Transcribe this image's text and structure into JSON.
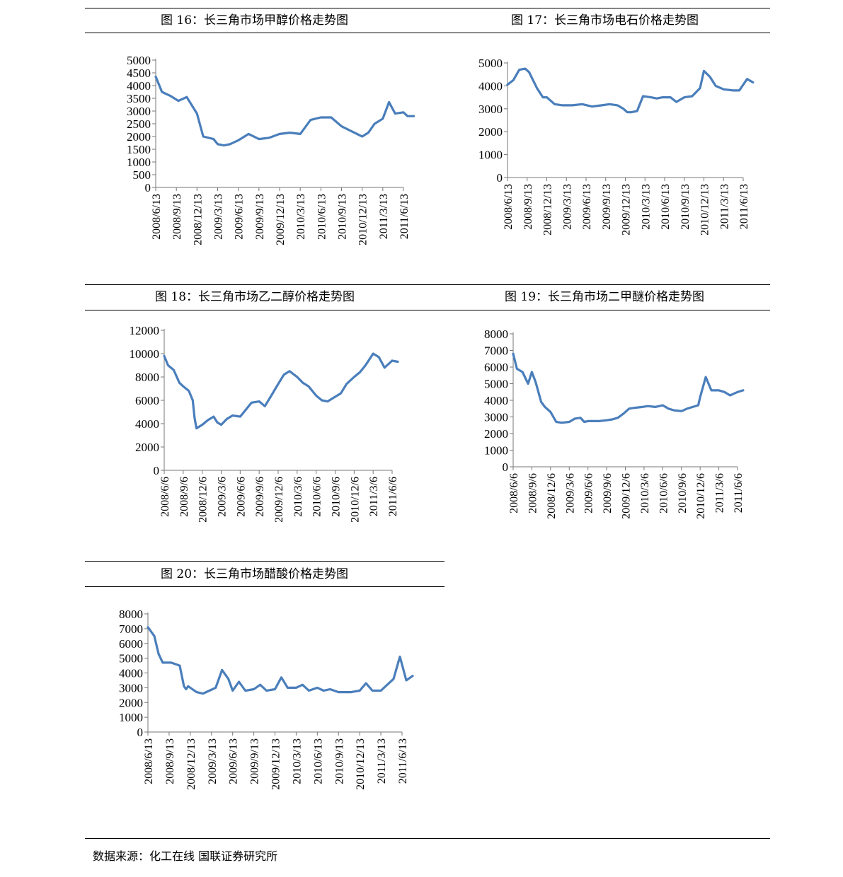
{
  "footer": {
    "source": "数据来源：化工在线 国联证券研究所"
  },
  "series_color": "#4a7ebb",
  "charts": [
    {
      "title": "图 16：长三角市场甲醇价格走势图",
      "chart_data": {
        "type": "line",
        "title": "图 16：长三角市场甲醇价格走势图",
        "xlabel": "",
        "ylabel": "",
        "ylim": [
          0,
          5000
        ],
        "y_ticks": [
          "0",
          "500",
          "1000",
          "1500",
          "2000",
          "2500",
          "3000",
          "3500",
          "4000",
          "4500",
          "5000"
        ],
        "x_ticks": [
          "2008/6/13",
          "2008/9/13",
          "2008/12/13",
          "2009/3/13",
          "2009/6/13",
          "2009/9/13",
          "2009/12/13",
          "2010/3/13",
          "2010/6/13",
          "2010/9/13",
          "2010/12/13",
          "2011/3/13",
          "2011/6/13"
        ],
        "x": [
          0,
          0.3,
          0.7,
          1.1,
          1.5,
          2,
          2.3,
          2.8,
          3,
          3.3,
          3.6,
          4,
          4.5,
          5,
          5.5,
          6,
          6.5,
          7,
          7.5,
          8,
          8.5,
          9,
          9.5,
          10,
          10.3,
          10.6,
          11,
          11.3,
          11.6,
          12,
          12.2,
          12.5
        ],
        "values": [
          4350,
          3750,
          3600,
          3400,
          3550,
          2900,
          2000,
          1900,
          1700,
          1650,
          1700,
          1850,
          2100,
          1900,
          1950,
          2100,
          2150,
          2100,
          2650,
          2750,
          2750,
          2400,
          2200,
          2000,
          2150,
          2500,
          2700,
          3350,
          2900,
          2950,
          2800,
          2800
        ]
      }
    },
    {
      "title": "图 17：长三角市场电石价格走势图",
      "chart_data": {
        "type": "line",
        "title": "图 17：长三角市场电石价格走势图",
        "xlabel": "",
        "ylabel": "",
        "ylim": [
          0,
          5000
        ],
        "y_ticks": [
          "0",
          "1000",
          "2000",
          "3000",
          "4000",
          "5000"
        ],
        "x_ticks": [
          "2008/6/13",
          "2008/9/13",
          "2008/12/13",
          "2009/3/13",
          "2009/6/13",
          "2009/9/13",
          "2009/12/13",
          "2010/3/13",
          "2010/6/13",
          "2010/9/13",
          "2010/12/13",
          "2011/3/13",
          "2011/6/13"
        ],
        "x": [
          0,
          0.3,
          0.6,
          0.9,
          1.1,
          1.5,
          1.8,
          2,
          2.4,
          2.8,
          3.3,
          3.8,
          4.3,
          4.8,
          5.2,
          5.6,
          5.9,
          6.1,
          6.3,
          6.6,
          6.9,
          7.3,
          7.6,
          7.9,
          8.3,
          8.6,
          9,
          9.4,
          9.8,
          10,
          10.3,
          10.6,
          11,
          11.5,
          11.8,
          12.2,
          12.5
        ],
        "values": [
          4050,
          4250,
          4700,
          4750,
          4600,
          3900,
          3500,
          3500,
          3200,
          3150,
          3150,
          3200,
          3100,
          3150,
          3200,
          3150,
          3000,
          2850,
          2850,
          2900,
          3550,
          3500,
          3450,
          3500,
          3500,
          3300,
          3500,
          3550,
          3900,
          4650,
          4400,
          4000,
          3850,
          3800,
          3800,
          4300,
          4150
        ]
      }
    },
    {
      "title": "图 18：长三角市场乙二醇价格走势图",
      "chart_data": {
        "type": "line",
        "title": "图 18：长三角市场乙二醇价格走势图",
        "xlabel": "",
        "ylabel": "",
        "ylim": [
          0,
          12000
        ],
        "y_ticks": [
          "0",
          "2000",
          "4000",
          "6000",
          "8000",
          "10000",
          "12000"
        ],
        "x_ticks": [
          "2008/6/6",
          "2008/9/6",
          "2008/12/6",
          "2009/3/6",
          "2009/6/6",
          "2009/9/6",
          "2009/12/6",
          "2010/3/6",
          "2010/6/6",
          "2010/9/6",
          "2010/12/6",
          "2011/3/6",
          "2011/6/6"
        ],
        "x": [
          0,
          0.2,
          0.5,
          0.8,
          1,
          1.3,
          1.5,
          1.6,
          1.7,
          2,
          2.3,
          2.6,
          2.8,
          3,
          3.3,
          3.6,
          4,
          4.3,
          4.6,
          5,
          5.3,
          5.6,
          6,
          6.3,
          6.6,
          7,
          7.3,
          7.6,
          8,
          8.3,
          8.6,
          9,
          9.3,
          9.6,
          10,
          10.3,
          10.6,
          11,
          11.3,
          11.6,
          12,
          12.3
        ],
        "values": [
          9800,
          9000,
          8600,
          7500,
          7200,
          6800,
          6000,
          4500,
          3600,
          3900,
          4300,
          4600,
          4100,
          3900,
          4400,
          4700,
          4600,
          5200,
          5800,
          5900,
          5500,
          6300,
          7400,
          8200,
          8500,
          8000,
          7500,
          7200,
          6400,
          6000,
          5900,
          6300,
          6600,
          7400,
          8000,
          8400,
          9000,
          10000,
          9700,
          8800,
          9400,
          9300
        ]
      }
    },
    {
      "title": "图 19：长三角市场二甲醚价格走势图",
      "chart_data": {
        "type": "line",
        "title": "图 19：长三角市场二甲醚价格走势图",
        "xlabel": "",
        "ylabel": "",
        "ylim": [
          0,
          8000
        ],
        "y_ticks": [
          "0",
          "1000",
          "2000",
          "3000",
          "4000",
          "5000",
          "6000",
          "7000",
          "8000"
        ],
        "x_ticks": [
          "2008/6/6",
          "2008/9/6",
          "2008/12/6",
          "2009/3/6",
          "2009/6/6",
          "2009/9/6",
          "2009/12/6",
          "2010/3/6",
          "2010/6/6",
          "2010/9/6",
          "2010/12/6",
          "2011/3/6",
          "2011/6/6"
        ],
        "x": [
          0,
          0.2,
          0.5,
          0.8,
          1,
          1.2,
          1.5,
          1.7,
          2,
          2.3,
          2.6,
          3,
          3.3,
          3.6,
          3.8,
          4,
          4.3,
          4.6,
          5,
          5.3,
          5.6,
          5.9,
          6.2,
          6.5,
          6.9,
          7.2,
          7.6,
          8,
          8.3,
          8.6,
          9,
          9.3,
          9.6,
          9.9,
          10,
          10.3,
          10.6,
          11,
          11.3,
          11.6,
          12,
          12.3
        ],
        "values": [
          6800,
          5900,
          5700,
          5000,
          5700,
          5100,
          3900,
          3600,
          3300,
          2700,
          2650,
          2700,
          2900,
          2950,
          2700,
          2750,
          2750,
          2750,
          2800,
          2850,
          2950,
          3200,
          3500,
          3550,
          3600,
          3650,
          3600,
          3700,
          3500,
          3400,
          3350,
          3500,
          3600,
          3700,
          4200,
          5400,
          4600,
          4600,
          4500,
          4300,
          4500,
          4600
        ]
      }
    },
    {
      "title": "图 20：长三角市场醋酸价格走势图",
      "chart_data": {
        "type": "line",
        "title": "图 20：长三角市场醋酸价格走势图",
        "xlabel": "",
        "ylabel": "",
        "ylim": [
          0,
          8000
        ],
        "y_ticks": [
          "0",
          "1000",
          "2000",
          "3000",
          "4000",
          "5000",
          "6000",
          "7000",
          "8000"
        ],
        "x_ticks": [
          "2008/6/13",
          "2008/9/13",
          "2008/12/13",
          "2009/3/13",
          "2009/6/13",
          "2009/9/13",
          "2009/12/13",
          "2010/3/13",
          "2010/6/13",
          "2010/9/13",
          "2010/12/13",
          "2011/3/13",
          "2011/6/13"
        ],
        "x": [
          0,
          0.3,
          0.5,
          0.7,
          0.9,
          1.1,
          1.3,
          1.5,
          1.7,
          1.8,
          1.9,
          2.1,
          2.3,
          2.6,
          2.9,
          3.2,
          3.5,
          3.8,
          4,
          4.3,
          4.6,
          5,
          5.3,
          5.6,
          6,
          6.3,
          6.6,
          7,
          7.3,
          7.6,
          8,
          8.3,
          8.6,
          9,
          9.3,
          9.6,
          10,
          10.3,
          10.6,
          11,
          11.3,
          11.6,
          11.9,
          12.2,
          12.5
        ],
        "values": [
          7100,
          6500,
          5300,
          4700,
          4700,
          4700,
          4600,
          4500,
          3100,
          2900,
          3100,
          2900,
          2700,
          2600,
          2800,
          3000,
          4200,
          3600,
          2800,
          3400,
          2800,
          2900,
          3200,
          2800,
          2900,
          3700,
          3000,
          3000,
          3200,
          2800,
          3000,
          2800,
          2900,
          2700,
          2700,
          2700,
          2800,
          3300,
          2800,
          2800,
          3200,
          3600,
          5100,
          3500,
          3800
        ]
      }
    }
  ]
}
